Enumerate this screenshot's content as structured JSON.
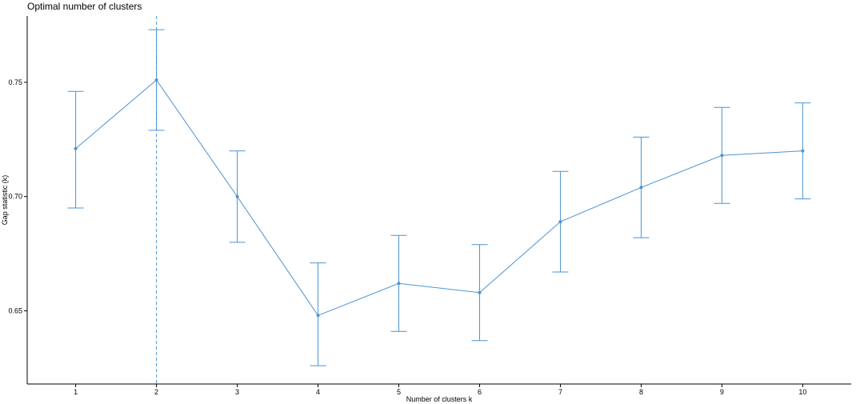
{
  "chart_data": {
    "type": "line",
    "title": "Optimal number of clusters",
    "xlabel": "Number of clusters k",
    "ylabel": "Gap statistic (k)",
    "x": [
      1,
      2,
      3,
      4,
      5,
      6,
      7,
      8,
      9,
      10
    ],
    "series": [
      {
        "values": [
          0.721,
          0.751,
          0.7,
          0.648,
          0.662,
          0.658,
          0.689,
          0.704,
          0.718,
          0.72
        ],
        "error_low": [
          0.695,
          0.729,
          0.68,
          0.626,
          0.641,
          0.637,
          0.667,
          0.682,
          0.697,
          0.699
        ],
        "error_high": [
          0.746,
          0.773,
          0.72,
          0.671,
          0.683,
          0.679,
          0.711,
          0.726,
          0.739,
          0.741
        ]
      }
    ],
    "optimal_k": 2,
    "yticks": [
      "0.65",
      "0.70",
      "0.75"
    ],
    "xlim": [
      0.4,
      10.6
    ],
    "ylim": [
      0.618,
      0.779
    ],
    "grid": false,
    "line_color": "#4d94d1"
  }
}
